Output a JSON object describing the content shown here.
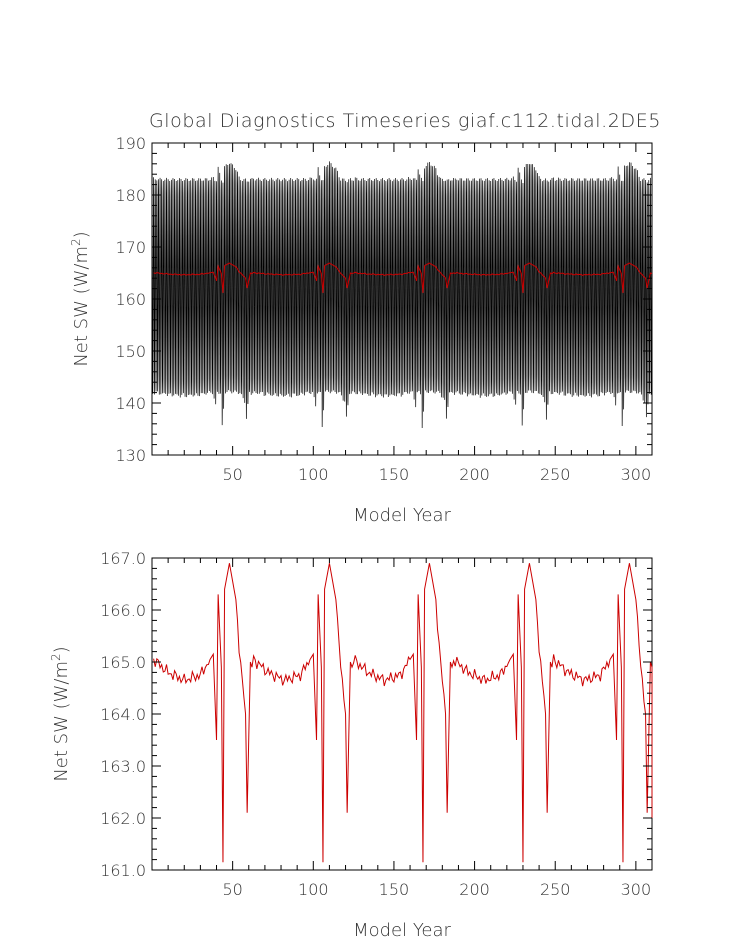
{
  "chart_data": [
    {
      "type": "line",
      "title": "Global Diagnostics Timeseries giaf.c112.tidal.2DE5",
      "xlabel": "Model Year",
      "ylabel": "Net SW (W/m²)",
      "xlim": [
        0,
        310
      ],
      "ylim": [
        130,
        190
      ],
      "xticks": [
        "50",
        "100",
        "150",
        "200",
        "250",
        "300"
      ],
      "yticks": [
        "130",
        "140",
        "150",
        "160",
        "170",
        "180",
        "190"
      ],
      "series": [
        {
          "color": "#000000",
          "description": "monthly values, annual cycle between ~142 and ~183, with spikes to ~186 and dips to ~139",
          "cycle_min": 142,
          "cycle_max": 183
        },
        {
          "color": "#cc0000",
          "description": "annual mean, ~165"
        }
      ]
    },
    {
      "type": "line",
      "title": "",
      "xlabel": "Model Year",
      "ylabel": "Net SW (W/m²)",
      "xlim": [
        0,
        310
      ],
      "ylim": [
        161.0,
        167.0
      ],
      "xticks": [
        "50",
        "100",
        "150",
        "200",
        "250",
        "300"
      ],
      "yticks": [
        "161.0",
        "162.0",
        "163.0",
        "164.0",
        "165.0",
        "166.0",
        "167.0"
      ],
      "series": [
        {
          "color": "#cc0000",
          "cycle_length": 62,
          "key_points": [
            {
              "x": 1,
              "y": 165.05
            },
            {
              "x": 10,
              "y": 164.8
            },
            {
              "x": 20,
              "y": 164.65
            },
            {
              "x": 30,
              "y": 164.75
            },
            {
              "x": 38,
              "y": 165.15
            },
            {
              "x": 40,
              "y": 163.5
            },
            {
              "x": 41,
              "y": 166.3
            },
            {
              "x": 43,
              "y": 164.9
            },
            {
              "x": 44,
              "y": 161.15
            },
            {
              "x": 45,
              "y": 166.4
            },
            {
              "x": 48,
              "y": 166.9
            },
            {
              "x": 52,
              "y": 166.2
            },
            {
              "x": 54,
              "y": 165.3
            },
            {
              "x": 58,
              "y": 164.0
            },
            {
              "x": 59,
              "y": 162.1
            },
            {
              "x": 61,
              "y": 165.0
            },
            {
              "x": 62,
              "y": 164.9
            }
          ]
        }
      ]
    }
  ]
}
